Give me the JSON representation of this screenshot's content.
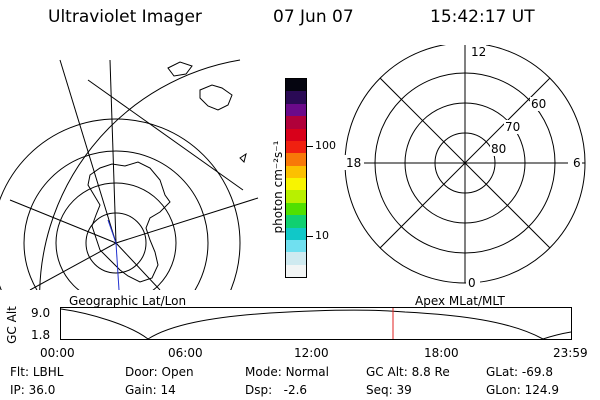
{
  "header": {
    "title": "Ultraviolet Imager",
    "date": "07 Jun 07",
    "time": "15:42:17 UT"
  },
  "left_map": {
    "caption": "Geographic Lat/Lon"
  },
  "right_dial": {
    "caption": "Apex MLat/MLT",
    "mlt_labels": [
      "12",
      "18",
      "6",
      "0"
    ],
    "lat_labels": [
      "60",
      "70",
      "80"
    ]
  },
  "colorbar": {
    "unit_label": "photon cm⁻²s⁻¹",
    "ticks": [
      "100",
      "10"
    ],
    "scale": "log",
    "colors": [
      "#050510",
      "#2a0a55",
      "#6a0a8a",
      "#b0003a",
      "#d8001a",
      "#f02010",
      "#f87808",
      "#fcc000",
      "#f8f400",
      "#b8f000",
      "#50e000",
      "#10d070",
      "#10c8c8",
      "#70e0f0",
      "#cfeaf0",
      "#f2f5f5"
    ]
  },
  "timeline": {
    "axis_label": "GC Alt",
    "y_ticks": [
      "9.0",
      "1.8"
    ],
    "x_ticks": [
      "00:00",
      "06:00",
      "12:00",
      "18:00",
      "23:59"
    ],
    "current_time_marker": "15:42"
  },
  "info": {
    "flt_label": "Flt:",
    "flt_value": "LBHL",
    "ip_label": "IP:",
    "ip_value": "36.0",
    "door_label": "Door:",
    "door_value": "Open",
    "gain_label": "Gain:",
    "gain_value": "14",
    "mode_label": "Mode:",
    "mode_value": "Normal",
    "dsp_label": "Dsp:",
    "dsp_value": "-2.6",
    "gcalt_label": "GC Alt:",
    "gcalt_value": "8.8 Re",
    "seq_label": "Seq:",
    "seq_value": "39",
    "glat_label": "GLat:",
    "glat_value": "-69.8",
    "glon_label": "GLon:",
    "glon_value": "124.9"
  }
}
